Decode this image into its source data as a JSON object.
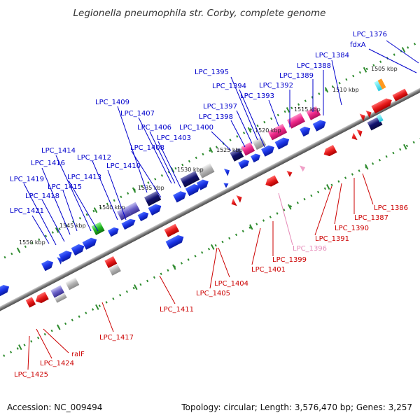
{
  "title": "Legionella pneumophila str. Corby, complete genome",
  "footer": {
    "accession": "Accession: NC_009494",
    "summary": "Topology: circular; Length: 3,576,470 bp; Genes: 3,257"
  },
  "colors": {
    "forward_label": "#0000cc",
    "reverse_label": "#cc0000",
    "faded_label": "#e68ab8",
    "tick_dots": "#2e8b2e",
    "backbone": "#808080"
  },
  "ticks": [
    "1505 kbp",
    "1510 kbp",
    "1515 kbp",
    "1520 kbp",
    "1525 kbp",
    "1530 kbp",
    "1535 kbp",
    "1540 kbp",
    "1545 kbp",
    "1550 kbp"
  ],
  "forward_genes": [
    "LPC_1376",
    "fdxA",
    "LPC_1384",
    "LPC_1388",
    "LPC_1389",
    "LPC_1392",
    "LPC_1393",
    "LPC_1394",
    "LPC_1395",
    "LPC_1397",
    "LPC_1398",
    "LPC_1400",
    "LPC_1403",
    "LPC_1406",
    "LPC_1407",
    "LPC_1408",
    "LPC_1409",
    "LPC_1410",
    "LPC_1412",
    "LPC_1413",
    "LPC_1414",
    "LPC_1415",
    "LPC_1416",
    "LPC_1418",
    "LPC_1419",
    "LPC_1421"
  ],
  "reverse_genes": [
    "LPC_1386",
    "LPC_1387",
    "LPC_1390",
    "LPC_1391",
    "LPC_1396",
    "LPC_1399",
    "LPC_1401",
    "LPC_1404",
    "LPC_1405",
    "LPC_1411",
    "LPC_1417",
    "ralF",
    "LPC_1424",
    "LPC_1425"
  ]
}
